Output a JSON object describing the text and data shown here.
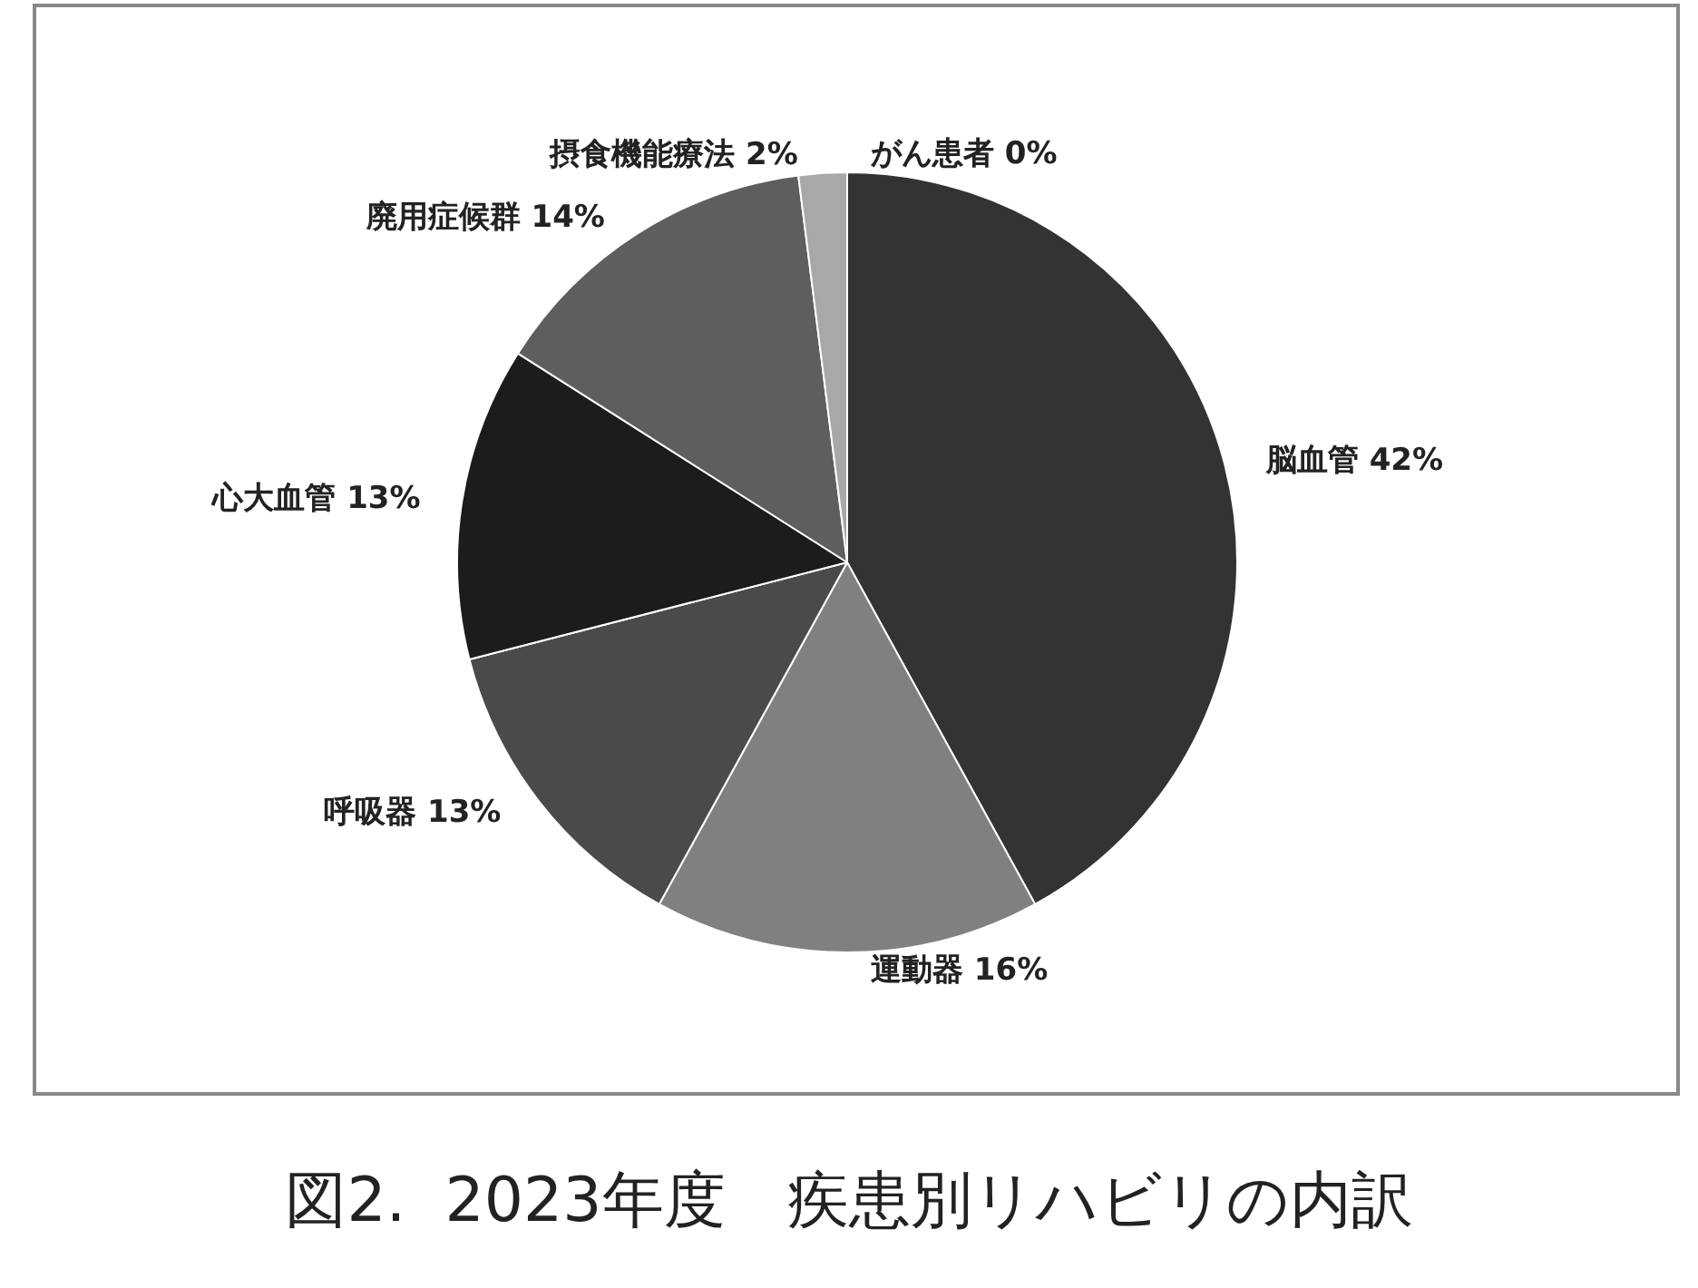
{
  "chart_data": {
    "type": "pie",
    "title": "図2.  2023年度　疾患別リハビリの内訳",
    "categories": [
      "脳血管",
      "運動器",
      "呼吸器",
      "心大血管",
      "廃用症候群",
      "摂食機能療法",
      "がん患者"
    ],
    "values": [
      42,
      16,
      13,
      13,
      14,
      2,
      0
    ],
    "colors": [
      "#333333",
      "#808080",
      "#4a4a4a",
      "#1c1c1c",
      "#5e5e5e",
      "#a8a8a8",
      "#d0d0d0"
    ],
    "value_labels": [
      "42%",
      "16%",
      "13%",
      "13%",
      "14%",
      "2%",
      "0%"
    ],
    "legend": false
  }
}
